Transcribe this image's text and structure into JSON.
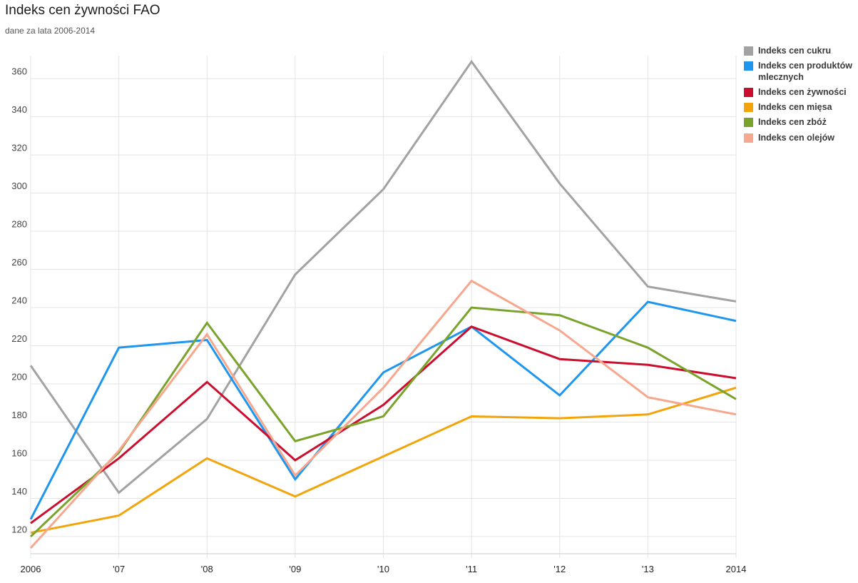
{
  "title": "Indeks cen żywności FAO",
  "subtitle": "dane za lata 2006-2014",
  "chart_data": {
    "type": "line",
    "categories": [
      "2006",
      "'07",
      "'08",
      "'09",
      "'10",
      "'11",
      "'12",
      "'13",
      "2014"
    ],
    "series": [
      {
        "name": "Indeks cen cukru",
        "color": "#a2a2a2",
        "values": [
          209.6,
          143.0,
          181.6,
          257.3,
          302.0,
          368.9,
          305.0,
          251.0,
          243.2
        ]
      },
      {
        "name": "Indeks cen produktów mlecznych",
        "color": "#1e96ee",
        "values": [
          129,
          219,
          223,
          150,
          206,
          230,
          194,
          243,
          233
        ]
      },
      {
        "name": "Indeks cen żywności",
        "color": "#cb0e2e",
        "values": [
          127,
          161,
          201,
          160,
          189,
          230,
          213,
          210,
          203
        ]
      },
      {
        "name": "Indeks cen mięsa",
        "color": "#f3a40a",
        "values": [
          122,
          131,
          161,
          141,
          162,
          183,
          182,
          184,
          198
        ]
      },
      {
        "name": "Indeks cen zbóż",
        "color": "#79a32b",
        "values": [
          120,
          164,
          232,
          170,
          183,
          240,
          236,
          219,
          192
        ]
      },
      {
        "name": "Indeks cen olejów",
        "color": "#f7a78e",
        "values": [
          114,
          165,
          226,
          152,
          198,
          254,
          228,
          193,
          184
        ]
      }
    ],
    "yticks": [
      120,
      140,
      160,
      180,
      200,
      220,
      240,
      260,
      280,
      300,
      320,
      340,
      360
    ],
    "ylim": [
      111,
      372
    ],
    "xlabel": "",
    "ylabel": "",
    "grid": true,
    "legend_position": "top-right",
    "gridline_color": "#e4e4e4",
    "axis_line_color": "#cccccc"
  }
}
